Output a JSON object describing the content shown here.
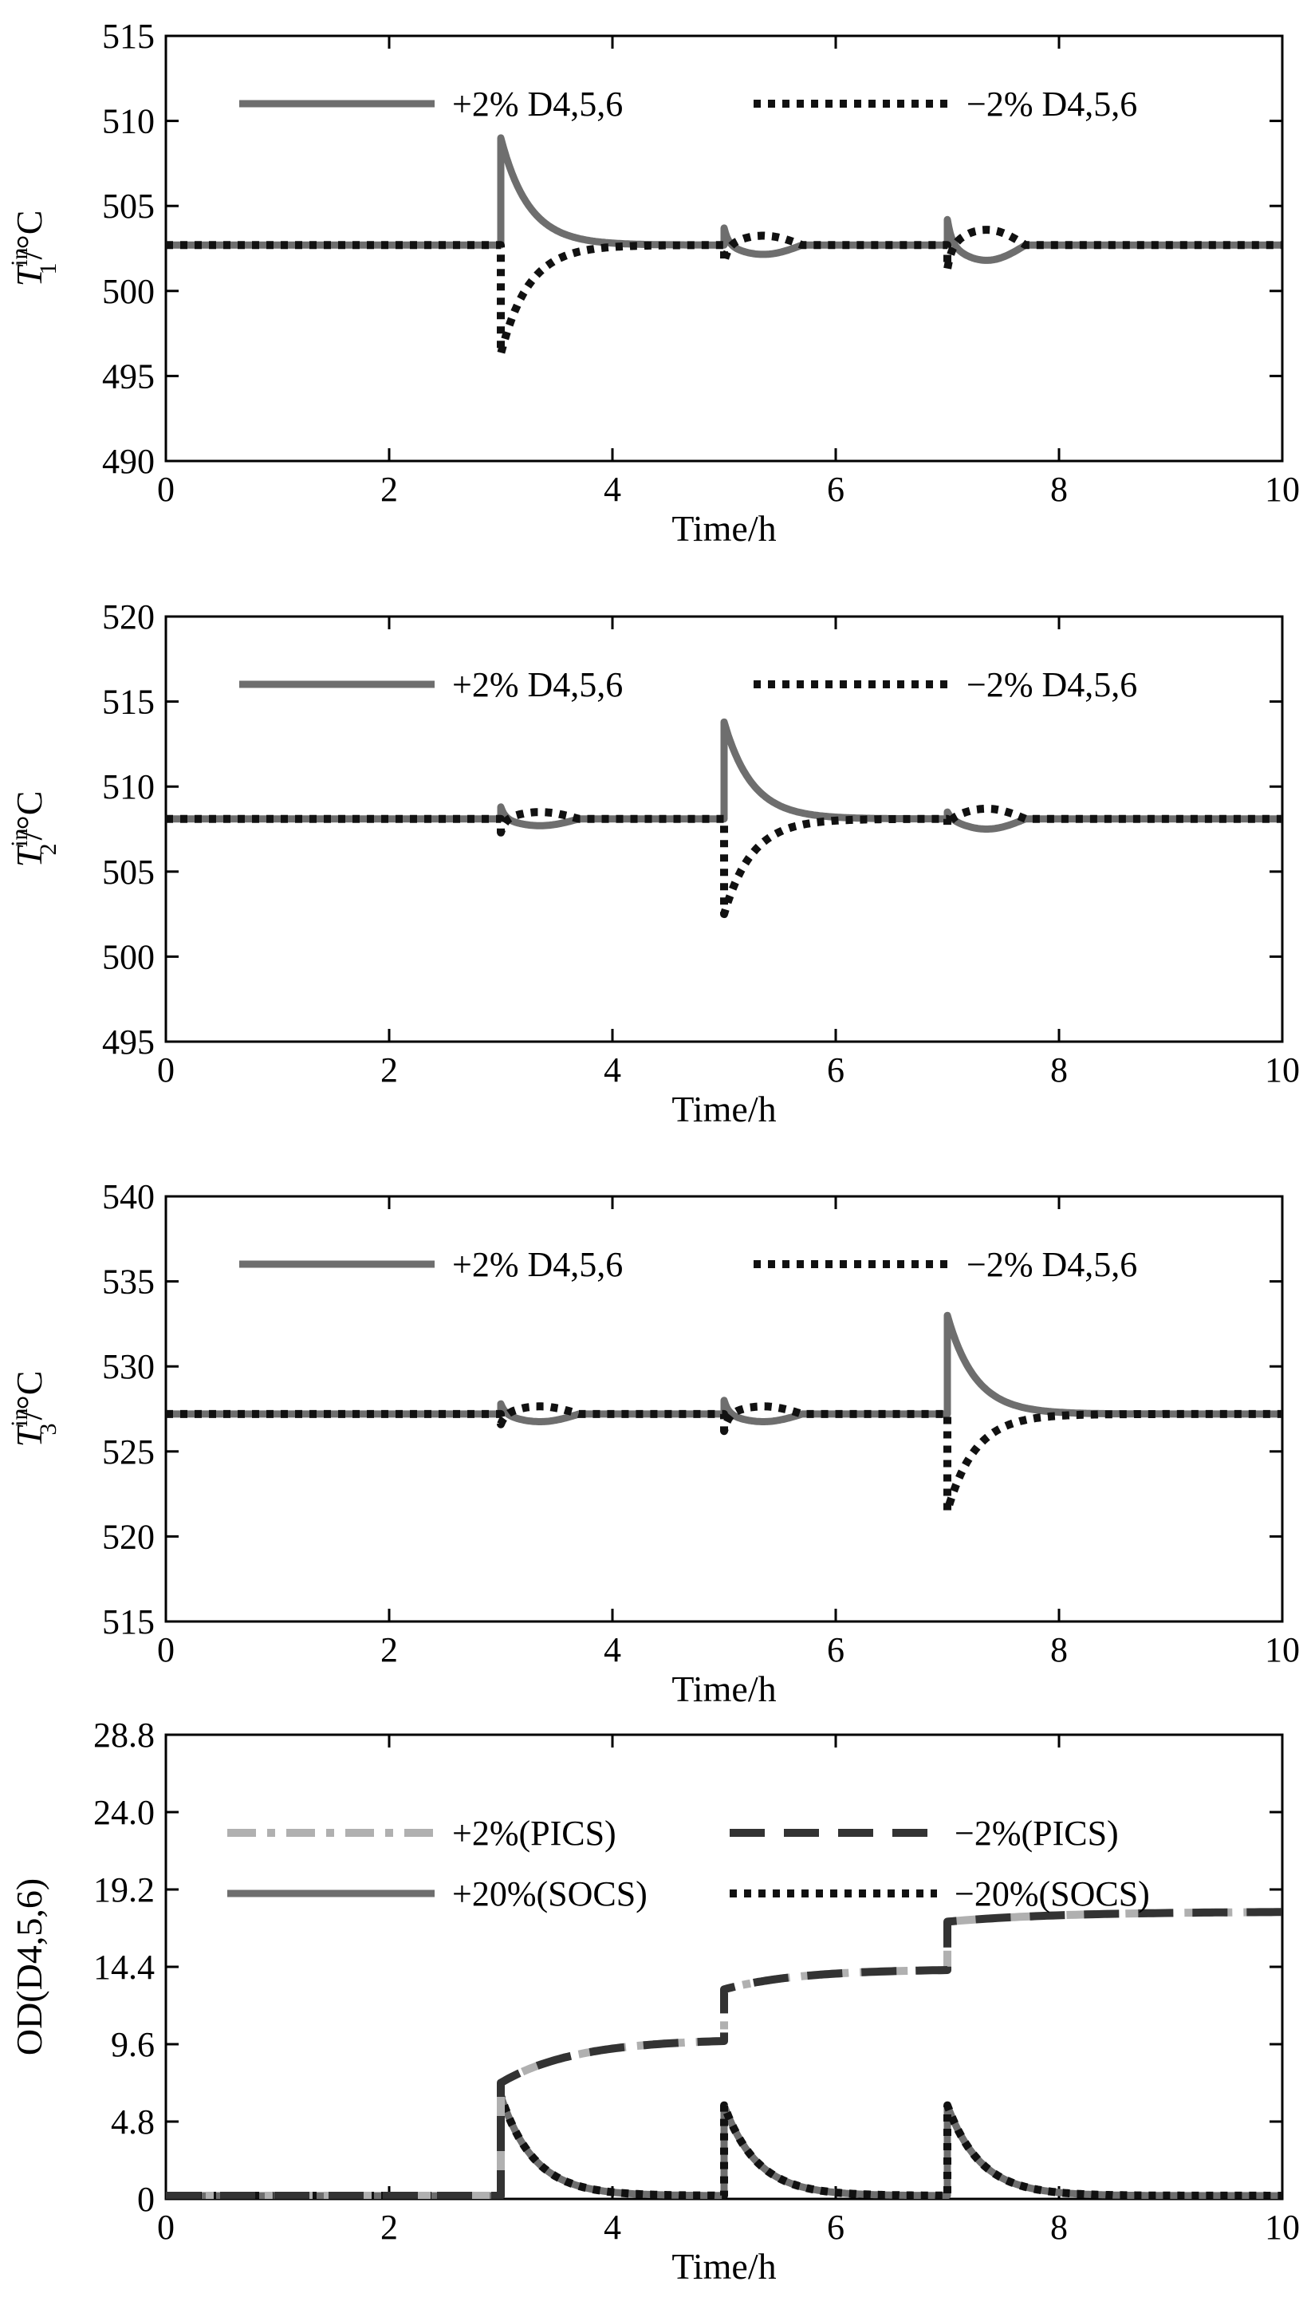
{
  "chart_data": [
    {
      "type": "line",
      "ylabel": {
        "var": "T",
        "sup": "in",
        "sub": "1",
        "unit": "/°C"
      },
      "xlabel": "Time/h",
      "xlim": [
        0,
        10
      ],
      "ylim": [
        490,
        515
      ],
      "xticks": [
        "0",
        "2",
        "4",
        "6",
        "8",
        "10"
      ],
      "yticks": [
        "490",
        "495",
        "500",
        "505",
        "510",
        "515"
      ],
      "grid": false,
      "legend_position": "top",
      "baseline": 502.7,
      "series": [
        {
          "name": "+2% D4,5,6",
          "color": "#6e6e6e",
          "dash": "solid",
          "events": [
            {
              "t": 3.0,
              "peak": 509.0,
              "tau": 0.25,
              "over": 0.0
            },
            {
              "t": 5.0,
              "peak": 503.7,
              "tau": 0.04,
              "over": -0.55
            },
            {
              "t": 7.0,
              "peak": 504.2,
              "tau": 0.04,
              "over": -0.9
            }
          ]
        },
        {
          "name": "−2% D4,5,6",
          "color": "#111111",
          "dash": "dot",
          "events": [
            {
              "t": 3.0,
              "peak": 496.3,
              "tau": 0.25,
              "over": 0.0
            },
            {
              "t": 5.0,
              "peak": 501.7,
              "tau": 0.04,
              "over": 0.55
            },
            {
              "t": 7.0,
              "peak": 501.3,
              "tau": 0.04,
              "over": 0.9
            }
          ]
        }
      ]
    },
    {
      "type": "line",
      "ylabel": {
        "var": "T",
        "sup": "in",
        "sub": "2",
        "unit": "/°C"
      },
      "xlabel": "Time/h",
      "xlim": [
        0,
        10
      ],
      "ylim": [
        495,
        520
      ],
      "xticks": [
        "0",
        "2",
        "4",
        "6",
        "8",
        "10"
      ],
      "yticks": [
        "495",
        "500",
        "505",
        "510",
        "515",
        "520"
      ],
      "grid": false,
      "legend_position": "top",
      "baseline": 508.1,
      "series": [
        {
          "name": "+2% D4,5,6",
          "color": "#6e6e6e",
          "dash": "solid",
          "events": [
            {
              "t": 3.0,
              "peak": 508.8,
              "tau": 0.04,
              "over": -0.4
            },
            {
              "t": 5.0,
              "peak": 513.8,
              "tau": 0.25,
              "over": 0.0
            },
            {
              "t": 7.0,
              "peak": 508.5,
              "tau": 0.04,
              "over": -0.6
            }
          ]
        },
        {
          "name": "−2% D4,5,6",
          "color": "#111111",
          "dash": "dot",
          "events": [
            {
              "t": 3.0,
              "peak": 507.3,
              "tau": 0.04,
              "over": 0.4
            },
            {
              "t": 5.0,
              "peak": 502.5,
              "tau": 0.25,
              "over": 0.0
            },
            {
              "t": 7.0,
              "peak": 507.7,
              "tau": 0.04,
              "over": 0.6
            }
          ]
        }
      ]
    },
    {
      "type": "line",
      "ylabel": {
        "var": "T",
        "sup": "in",
        "sub": "3",
        "unit": "/°C"
      },
      "xlabel": "Time/h",
      "xlim": [
        0,
        10
      ],
      "ylim": [
        515,
        540
      ],
      "xticks": [
        "0",
        "2",
        "4",
        "6",
        "8",
        "10"
      ],
      "yticks": [
        "515",
        "520",
        "525",
        "530",
        "535",
        "540"
      ],
      "grid": false,
      "legend_position": "top",
      "baseline": 527.2,
      "series": [
        {
          "name": "+2% D4,5,6",
          "color": "#6e6e6e",
          "dash": "solid",
          "events": [
            {
              "t": 3.0,
              "peak": 527.8,
              "tau": 0.04,
              "over": -0.45
            },
            {
              "t": 5.0,
              "peak": 528.0,
              "tau": 0.04,
              "over": -0.45
            },
            {
              "t": 7.0,
              "peak": 533.0,
              "tau": 0.25,
              "over": 0.0
            }
          ]
        },
        {
          "name": "−2% D4,5,6",
          "color": "#111111",
          "dash": "dot",
          "events": [
            {
              "t": 3.0,
              "peak": 526.6,
              "tau": 0.04,
              "over": 0.45
            },
            {
              "t": 5.0,
              "peak": 526.2,
              "tau": 0.04,
              "over": 0.45
            },
            {
              "t": 7.0,
              "peak": 521.5,
              "tau": 0.25,
              "over": 0.0
            }
          ]
        }
      ]
    },
    {
      "type": "line",
      "ylabel": "OD(D4,5,6)",
      "xlabel": "Time/h",
      "xlim": [
        0,
        10
      ],
      "ylim": [
        0,
        28.8
      ],
      "xticks": [
        "0",
        "2",
        "4",
        "6",
        "8",
        "10"
      ],
      "yticks": [
        "0",
        "4.8",
        "9.6",
        "14.4",
        "19.2",
        "24.0",
        "28.8"
      ],
      "grid": false,
      "legend_position": "top",
      "series": [
        {
          "name": "+2%(PICS)",
          "color": "#b0b0b0",
          "dash": "dashdot",
          "kind": "staircase",
          "segments": [
            {
              "t0": 0,
              "t1": 3,
              "y0": 0.2,
              "y1": 0.2
            },
            {
              "t0": 3,
              "t1": 5,
              "y0": 7.2,
              "y1": 9.8
            },
            {
              "t0": 5,
              "t1": 7,
              "y0": 13.0,
              "y1": 14.2
            },
            {
              "t0": 7,
              "t1": 10,
              "y0": 17.2,
              "y1": 17.8
            }
          ]
        },
        {
          "name": "−2%(PICS)",
          "color": "#333333",
          "dash": "dash",
          "kind": "staircase",
          "segments": [
            {
              "t0": 0,
              "t1": 3,
              "y0": 0.2,
              "y1": 0.2
            },
            {
              "t0": 3,
              "t1": 5,
              "y0": 7.2,
              "y1": 9.8
            },
            {
              "t0": 5,
              "t1": 7,
              "y0": 13.0,
              "y1": 14.2
            },
            {
              "t0": 7,
              "t1": 10,
              "y0": 17.2,
              "y1": 17.8
            }
          ]
        },
        {
          "name": "+20%(SOCS)",
          "color": "#6e6e6e",
          "dash": "solid",
          "kind": "pulses",
          "base": 0.2,
          "tau": 0.3,
          "pulses": [
            {
              "t": 3.0,
              "peak": 6.4
            },
            {
              "t": 5.0,
              "peak": 5.8
            },
            {
              "t": 7.0,
              "peak": 5.8
            }
          ]
        },
        {
          "name": "−20%(SOCS)",
          "color": "#111111",
          "dash": "dot",
          "kind": "pulses",
          "base": 0.2,
          "tau": 0.3,
          "pulses": [
            {
              "t": 3.0,
              "peak": 6.4
            },
            {
              "t": 5.0,
              "peak": 5.8
            },
            {
              "t": 7.0,
              "peak": 5.8
            }
          ]
        }
      ]
    }
  ]
}
